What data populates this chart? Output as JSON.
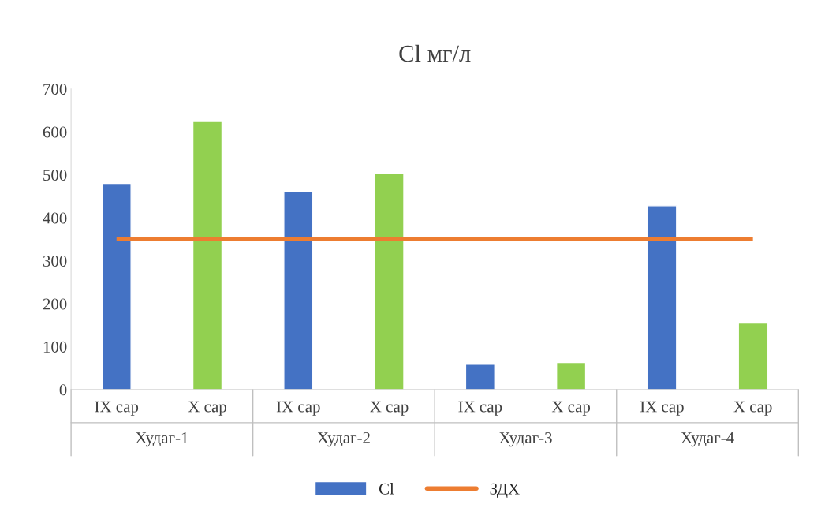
{
  "chart_data": {
    "type": "bar",
    "title": "Cl мг/л",
    "categories": [
      "IX сар",
      "X сар",
      "IX сар",
      "X сар",
      "IX сар",
      "X сар",
      "IX сар",
      "X сар"
    ],
    "series": [
      {
        "name": "Cl",
        "color": "#4472c4",
        "colors": [
          "#4472c4",
          "#92d050",
          "#4472c4",
          "#92d050",
          "#4472c4",
          "#92d050",
          "#4472c4",
          "#92d050"
        ],
        "values": [
          480,
          624,
          462,
          504,
          59,
          63,
          428,
          155
        ]
      },
      {
        "name": "ЗДХ",
        "type": "line",
        "color": "#ed7d31",
        "values": [
          350,
          350,
          350,
          350,
          350,
          350,
          350,
          350
        ]
      }
    ],
    "annotations": [
      "Худаг-1",
      "Худаг-2",
      "Худаг-3",
      "Худаг-4"
    ],
    "ylim": [
      0,
      700
    ],
    "yticks": [
      0,
      100,
      200,
      300,
      400,
      500,
      600,
      700
    ],
    "grid": false,
    "legend": "bottom",
    "marker": "none"
  }
}
